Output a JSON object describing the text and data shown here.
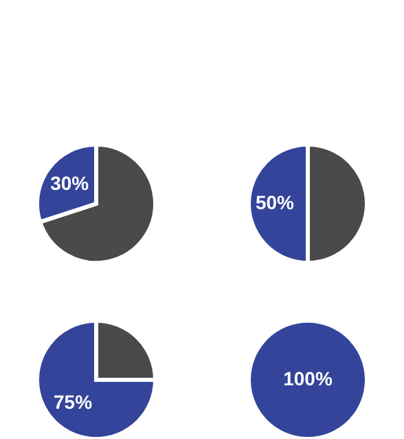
{
  "chart_data": [
    {
      "type": "pie",
      "categories": [
        null,
        null
      ],
      "values": [
        70,
        30
      ],
      "colors": [
        "#4a4a4a",
        "#33449a"
      ],
      "value_labels": [
        null,
        "30%"
      ]
    },
    {
      "type": "pie",
      "categories": [
        null,
        null
      ],
      "values": [
        50,
        50
      ],
      "colors": [
        "#4a4a4a",
        "#33449a"
      ],
      "value_labels": [
        null,
        "50%"
      ]
    },
    {
      "type": "pie",
      "categories": [
        null,
        null
      ],
      "values": [
        25,
        75
      ],
      "colors": [
        "#4a4a4a",
        "#33449a"
      ],
      "value_labels": [
        null,
        "75%"
      ]
    },
    {
      "type": "pie",
      "categories": [
        null,
        null
      ],
      "values": [
        0,
        100
      ],
      "colors": [
        "#4a4a4a",
        "#33449a"
      ],
      "value_labels": [
        null,
        "100%"
      ]
    }
  ]
}
